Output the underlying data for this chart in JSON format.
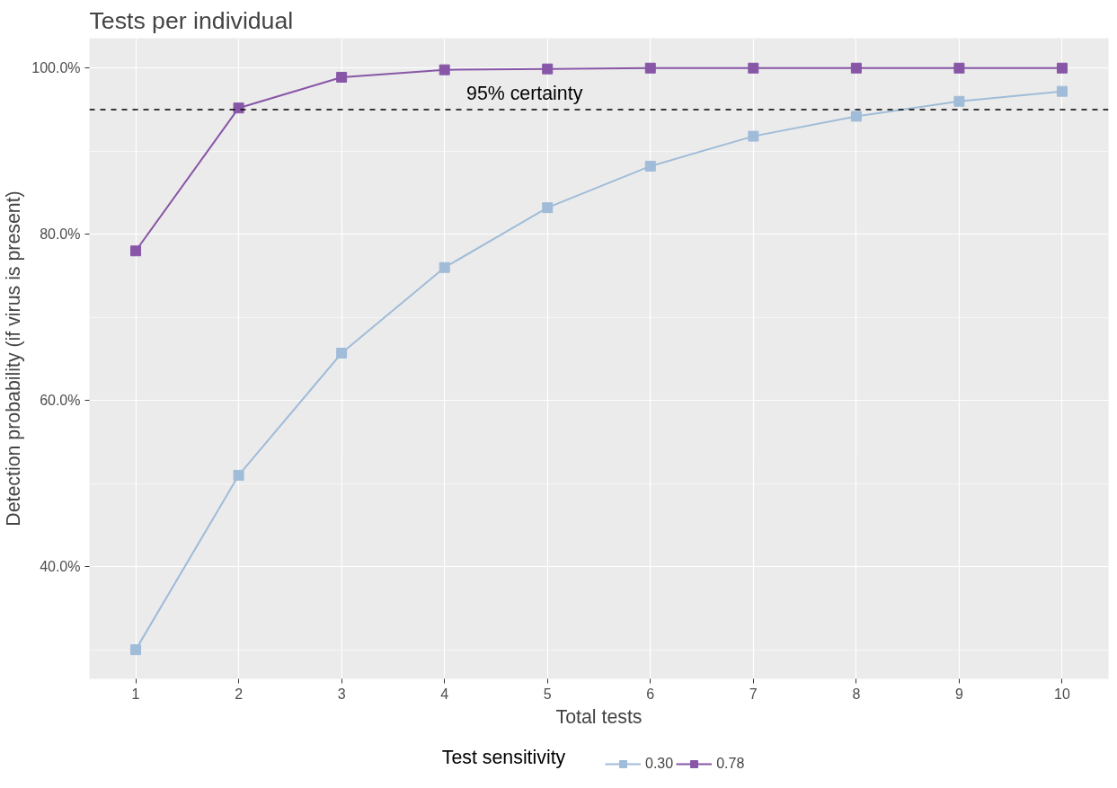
{
  "chart_data": {
    "type": "line",
    "title": "Tests per individual",
    "xlabel": "Total tests",
    "ylabel": "Detection probability (if virus is present)",
    "legend_title": "Test sensitivity",
    "x": [
      1,
      2,
      3,
      4,
      5,
      6,
      7,
      8,
      9,
      10
    ],
    "series": [
      {
        "name": "0.30",
        "color": "#a0bcd8",
        "values": [
          30.0,
          51.0,
          65.7,
          76.0,
          83.2,
          88.2,
          91.8,
          94.2,
          96.0,
          97.2
        ]
      },
      {
        "name": "0.78",
        "color": "#8856a7",
        "values": [
          78.0,
          95.2,
          98.9,
          99.8,
          99.9,
          100.0,
          100.0,
          100.0,
          100.0,
          100.0
        ]
      }
    ],
    "xlim": [
      0.55,
      10.45
    ],
    "xticks": [
      1,
      2,
      3,
      4,
      5,
      6,
      7,
      8,
      9,
      10
    ],
    "ylim": [
      26.5,
      103.6
    ],
    "yticks": [
      {
        "value": 30,
        "label": null
      },
      {
        "value": 40,
        "label": "40.0%"
      },
      {
        "value": 50,
        "label": null
      },
      {
        "value": 60,
        "label": "60.0%"
      },
      {
        "value": 70,
        "label": null
      },
      {
        "value": 80,
        "label": "80.0%"
      },
      {
        "value": 90,
        "label": null
      },
      {
        "value": 100,
        "label": "100.0%"
      }
    ],
    "ref_lines": [
      {
        "axis": "y",
        "value": 95,
        "label": "95% certainty",
        "color": "#000000",
        "line_style": "dashed"
      }
    ],
    "grid": true,
    "legend": "bottom",
    "marker": "square",
    "line_style": "solid"
  }
}
